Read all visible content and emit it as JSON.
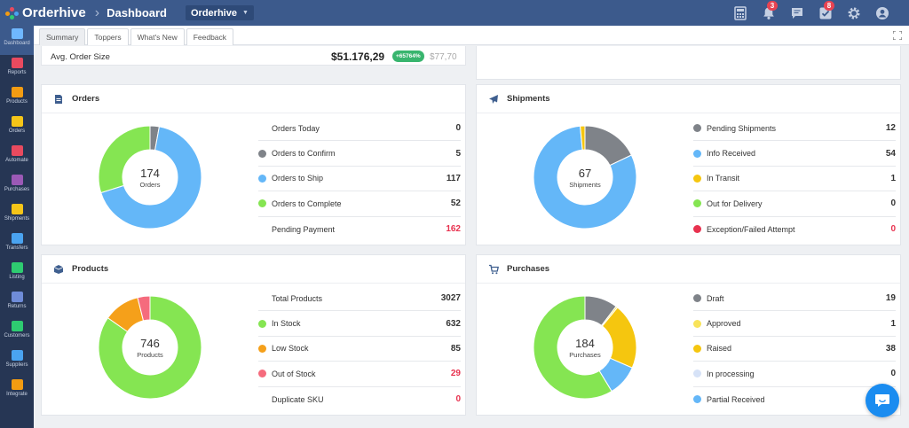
{
  "header": {
    "brand": "Orderhive",
    "breadcrumb": "Dashboard",
    "store": "Orderhive",
    "notifications_badge": "3",
    "tasks_badge": "8"
  },
  "sidebar": {
    "items": [
      {
        "label": "Dashboard",
        "color": "#6fb7ff",
        "active": true
      },
      {
        "label": "Reports",
        "color": "#e84a5f"
      },
      {
        "label": "Products",
        "color": "#f39c12"
      },
      {
        "label": "Orders",
        "color": "#f5c518"
      },
      {
        "label": "Automate",
        "color": "#e84a5f"
      },
      {
        "label": "Purchases",
        "color": "#9b59b6"
      },
      {
        "label": "Shipments",
        "color": "#f5c518"
      },
      {
        "label": "Transfers",
        "color": "#4aa3f0"
      },
      {
        "label": "Listing",
        "color": "#2ecc71"
      },
      {
        "label": "Returns",
        "color": "#6f8cd8"
      },
      {
        "label": "Customers",
        "color": "#2ecc71"
      },
      {
        "label": "Suppliers",
        "color": "#4aa3f0"
      },
      {
        "label": "Integrate",
        "color": "#f39c12"
      }
    ]
  },
  "tabs": [
    "Summary",
    "Toppers",
    "What's New",
    "Feedback"
  ],
  "active_tab": "Summary",
  "avg_order": {
    "label": "Avg. Order Size",
    "value": "$51.176,29",
    "change": "+65764%",
    "previous": "$77,70"
  },
  "orders": {
    "title": "Orders",
    "total": "174",
    "total_label": "Orders",
    "rows": [
      {
        "label": "Orders Today",
        "value": "0",
        "color": ""
      },
      {
        "label": "Orders to Confirm",
        "value": "5",
        "color": "#7f8389"
      },
      {
        "label": "Orders to Ship",
        "value": "117",
        "color": "#64b7f8"
      },
      {
        "label": "Orders to Complete",
        "value": "52",
        "color": "#85e552"
      },
      {
        "label": "Pending Payment",
        "value": "162",
        "color": "",
        "red": true
      }
    ]
  },
  "shipments": {
    "title": "Shipments",
    "total": "67",
    "total_label": "Shipments",
    "rows": [
      {
        "label": "Pending Shipments",
        "value": "12",
        "color": "#7f8389"
      },
      {
        "label": "Info Received",
        "value": "54",
        "color": "#64b7f8"
      },
      {
        "label": "In Transit",
        "value": "1",
        "color": "#f5c60f"
      },
      {
        "label": "Out for Delivery",
        "value": "0",
        "color": "#85e552"
      },
      {
        "label": "Exception/Failed Attempt",
        "value": "0",
        "color": "#e8324f",
        "red": true
      }
    ]
  },
  "products": {
    "title": "Products",
    "total": "746",
    "total_label": "Products",
    "rows": [
      {
        "label": "Total Products",
        "value": "3027",
        "color": ""
      },
      {
        "label": "In Stock",
        "value": "632",
        "color": "#85e552"
      },
      {
        "label": "Low Stock",
        "value": "85",
        "color": "#f5a01a"
      },
      {
        "label": "Out of Stock",
        "value": "29",
        "color": "#f56b7d",
        "red": true
      },
      {
        "label": "Duplicate SKU",
        "value": "0",
        "color": "",
        "red": true
      }
    ]
  },
  "purchases": {
    "title": "Purchases",
    "total": "184",
    "total_label": "Purchases",
    "rows": [
      {
        "label": "Draft",
        "value": "19",
        "color": "#7f8389"
      },
      {
        "label": "Approved",
        "value": "1",
        "color": "#f8e35a"
      },
      {
        "label": "Raised",
        "value": "38",
        "color": "#f5c60f"
      },
      {
        "label": "In processing",
        "value": "0",
        "color": "#d6e2f7"
      },
      {
        "label": "Partial Received",
        "value": "",
        "color": "#64b7f8"
      }
    ]
  },
  "donuts": {
    "orders": [
      {
        "value": 5,
        "color": "#7f8389"
      },
      {
        "value": 117,
        "color": "#64b7f8"
      },
      {
        "value": 52,
        "color": "#85e552"
      }
    ],
    "shipments": [
      {
        "value": 12,
        "color": "#7f8389"
      },
      {
        "value": 54,
        "color": "#64b7f8"
      },
      {
        "value": 1,
        "color": "#f5c60f"
      }
    ],
    "products": [
      {
        "value": 632,
        "color": "#85e552"
      },
      {
        "value": 85,
        "color": "#f5a01a"
      },
      {
        "value": 29,
        "color": "#f56b7d"
      }
    ],
    "purchases": [
      {
        "value": 19,
        "color": "#7f8389"
      },
      {
        "value": 1,
        "color": "#f8e35a"
      },
      {
        "value": 38,
        "color": "#f5c60f"
      },
      {
        "value": 18,
        "color": "#64b7f8"
      },
      {
        "value": 108,
        "color": "#85e552"
      }
    ]
  }
}
